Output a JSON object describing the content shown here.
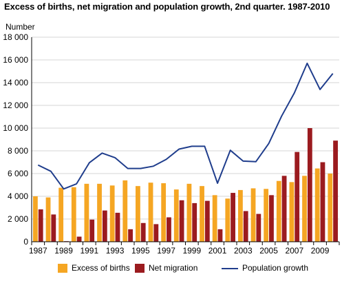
{
  "chart_data": {
    "type": "bar",
    "title": "Excess of births, net migration and population growth, 2nd quarter. 1987-2010",
    "ylabel": "Number",
    "ylim": [
      0,
      18000
    ],
    "yticks": [
      0,
      2000,
      4000,
      6000,
      8000,
      10000,
      12000,
      14000,
      16000,
      18000
    ],
    "ytick_labels": [
      "0",
      "2 000",
      "4 000",
      "6 000",
      "8 000",
      "10 000",
      "12 000",
      "14 000",
      "16 000",
      "18 000"
    ],
    "categories": [
      "1987",
      "1988",
      "1989",
      "1990",
      "1991",
      "1992",
      "1993",
      "1994",
      "1995",
      "1996",
      "1997",
      "1998",
      "1999",
      "2000",
      "2001",
      "2002",
      "2003",
      "2004",
      "2005",
      "2006",
      "2007",
      "2008",
      "2009",
      "2010"
    ],
    "xtick_labels": [
      "1987",
      "1989",
      "1991",
      "1993",
      "1995",
      "1997",
      "1999",
      "2001",
      "2003",
      "2005",
      "2007",
      "2009"
    ],
    "grid": true,
    "legend_position": "bottom",
    "colors": {
      "excess": "#f5a623",
      "migration": "#9b1b1f",
      "growth": "#1f3d8c",
      "grid": "#d4d4d4",
      "axis": "#000000"
    },
    "series": [
      {
        "name": "Excess of births",
        "type": "bar",
        "values": [
          4000,
          3900,
          4750,
          4800,
          5100,
          5100,
          4950,
          5400,
          4900,
          5200,
          5150,
          4600,
          5100,
          4900,
          4100,
          3800,
          4550,
          4700,
          4650,
          5350,
          5250,
          5800,
          6450,
          6000
        ]
      },
      {
        "name": "Net migration",
        "type": "bar",
        "values": [
          2850,
          2400,
          50,
          450,
          1950,
          2750,
          2550,
          1100,
          1650,
          1550,
          2150,
          3650,
          3400,
          3600,
          1100,
          4300,
          2700,
          2450,
          4100,
          5800,
          7900,
          10000,
          7000,
          8900
        ]
      },
      {
        "name": "Population growth",
        "type": "line",
        "values": [
          6750,
          6200,
          4650,
          5100,
          6950,
          7800,
          7400,
          6450,
          6450,
          6650,
          7250,
          8150,
          8400,
          8400,
          5150,
          8050,
          7100,
          7050,
          8650,
          11050,
          13100,
          15700,
          13400,
          14800
        ]
      }
    ]
  }
}
